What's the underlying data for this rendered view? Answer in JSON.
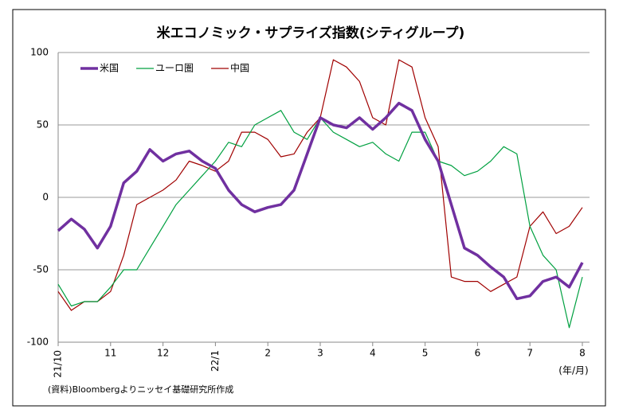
{
  "chart_data": {
    "type": "line",
    "title": "米エコノミック・サプライズ指数(シティグループ)",
    "x_unit": "(年/月)",
    "source": "(資料)Bloombergよりニッセイ基礎研究所作成",
    "categories": [
      "21/10",
      null,
      null,
      null,
      "11",
      null,
      null,
      null,
      "12",
      null,
      null,
      null,
      "22/1",
      null,
      null,
      null,
      "2",
      null,
      null,
      null,
      "3",
      null,
      null,
      null,
      "4",
      null,
      null,
      null,
      "5",
      null,
      null,
      null,
      "6",
      null,
      null,
      null,
      "7",
      null,
      null,
      null,
      "8"
    ],
    "series": [
      {
        "name": "米国",
        "color": "#7030a0",
        "width": 3.5,
        "values": [
          -23,
          -15,
          -22,
          -35,
          -20,
          10,
          18,
          33,
          25,
          30,
          32,
          25,
          20,
          5,
          -5,
          -10,
          -7,
          -5,
          5,
          30,
          55,
          50,
          48,
          55,
          47,
          55,
          65,
          60,
          40,
          25,
          -5,
          -35,
          -40,
          -48,
          -55,
          -70,
          -68,
          -58,
          -55,
          -62,
          -45
        ]
      },
      {
        "name": "ユーロ圏",
        "color": "#00a040",
        "width": 1.2,
        "values": [
          -60,
          -75,
          -72,
          -72,
          -62,
          -50,
          -50,
          -35,
          -20,
          -5,
          5,
          15,
          25,
          38,
          35,
          50,
          55,
          60,
          45,
          40,
          55,
          45,
          40,
          35,
          38,
          30,
          25,
          45,
          45,
          25,
          22,
          15,
          18,
          25,
          35,
          30,
          -20,
          -40,
          -50,
          -90,
          -55
        ]
      },
      {
        "name": "中国",
        "color": "#a00000",
        "width": 1.2,
        "values": [
          -65,
          -78,
          -72,
          -72,
          -65,
          -40,
          -5,
          0,
          5,
          12,
          25,
          22,
          18,
          25,
          45,
          45,
          40,
          28,
          30,
          45,
          55,
          95,
          90,
          80,
          55,
          50,
          95,
          90,
          55,
          35,
          -55,
          -58,
          -58,
          -65,
          -60,
          -55,
          -20,
          -10,
          -25,
          -20,
          -7
        ]
      }
    ],
    "ylim": [
      -100,
      100
    ],
    "yticks": [
      -100,
      -50,
      0,
      50,
      100
    ],
    "grid": true,
    "legend": "top-left"
  }
}
